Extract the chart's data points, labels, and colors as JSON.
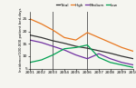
{
  "years": [
    2001,
    2002,
    2003,
    2004,
    2005,
    2006,
    2007,
    2008,
    2009,
    2010
  ],
  "total": [
    18.5,
    17.5,
    16.2,
    15.2,
    14.0,
    13.2,
    12.2,
    11.2,
    10.0,
    9.0
  ],
  "high": [
    25.0,
    23.0,
    20.5,
    17.5,
    16.5,
    19.5,
    17.5,
    15.5,
    13.5,
    12.0
  ],
  "medium": [
    16.5,
    15.5,
    14.0,
    12.5,
    10.5,
    9.0,
    11.0,
    9.0,
    7.5,
    6.5
  ],
  "low": [
    7.5,
    8.5,
    10.5,
    13.0,
    13.5,
    14.5,
    9.5,
    7.5,
    6.5,
    5.5
  ],
  "total_color": "#333333",
  "high_color": "#e87820",
  "medium_color": "#7030a0",
  "low_color": "#00a050",
  "vlines": [
    2003,
    2006
  ],
  "vline_color": "#666666",
  "ylim": [
    5,
    28
  ],
  "yticks": [
    5,
    10,
    15,
    20,
    25
  ],
  "ylabel": "Incidence/100,000 patient bed-days",
  "background_color": "#f5f5f0",
  "legend_labels": [
    "Total",
    "High",
    "Medium",
    "Low"
  ]
}
